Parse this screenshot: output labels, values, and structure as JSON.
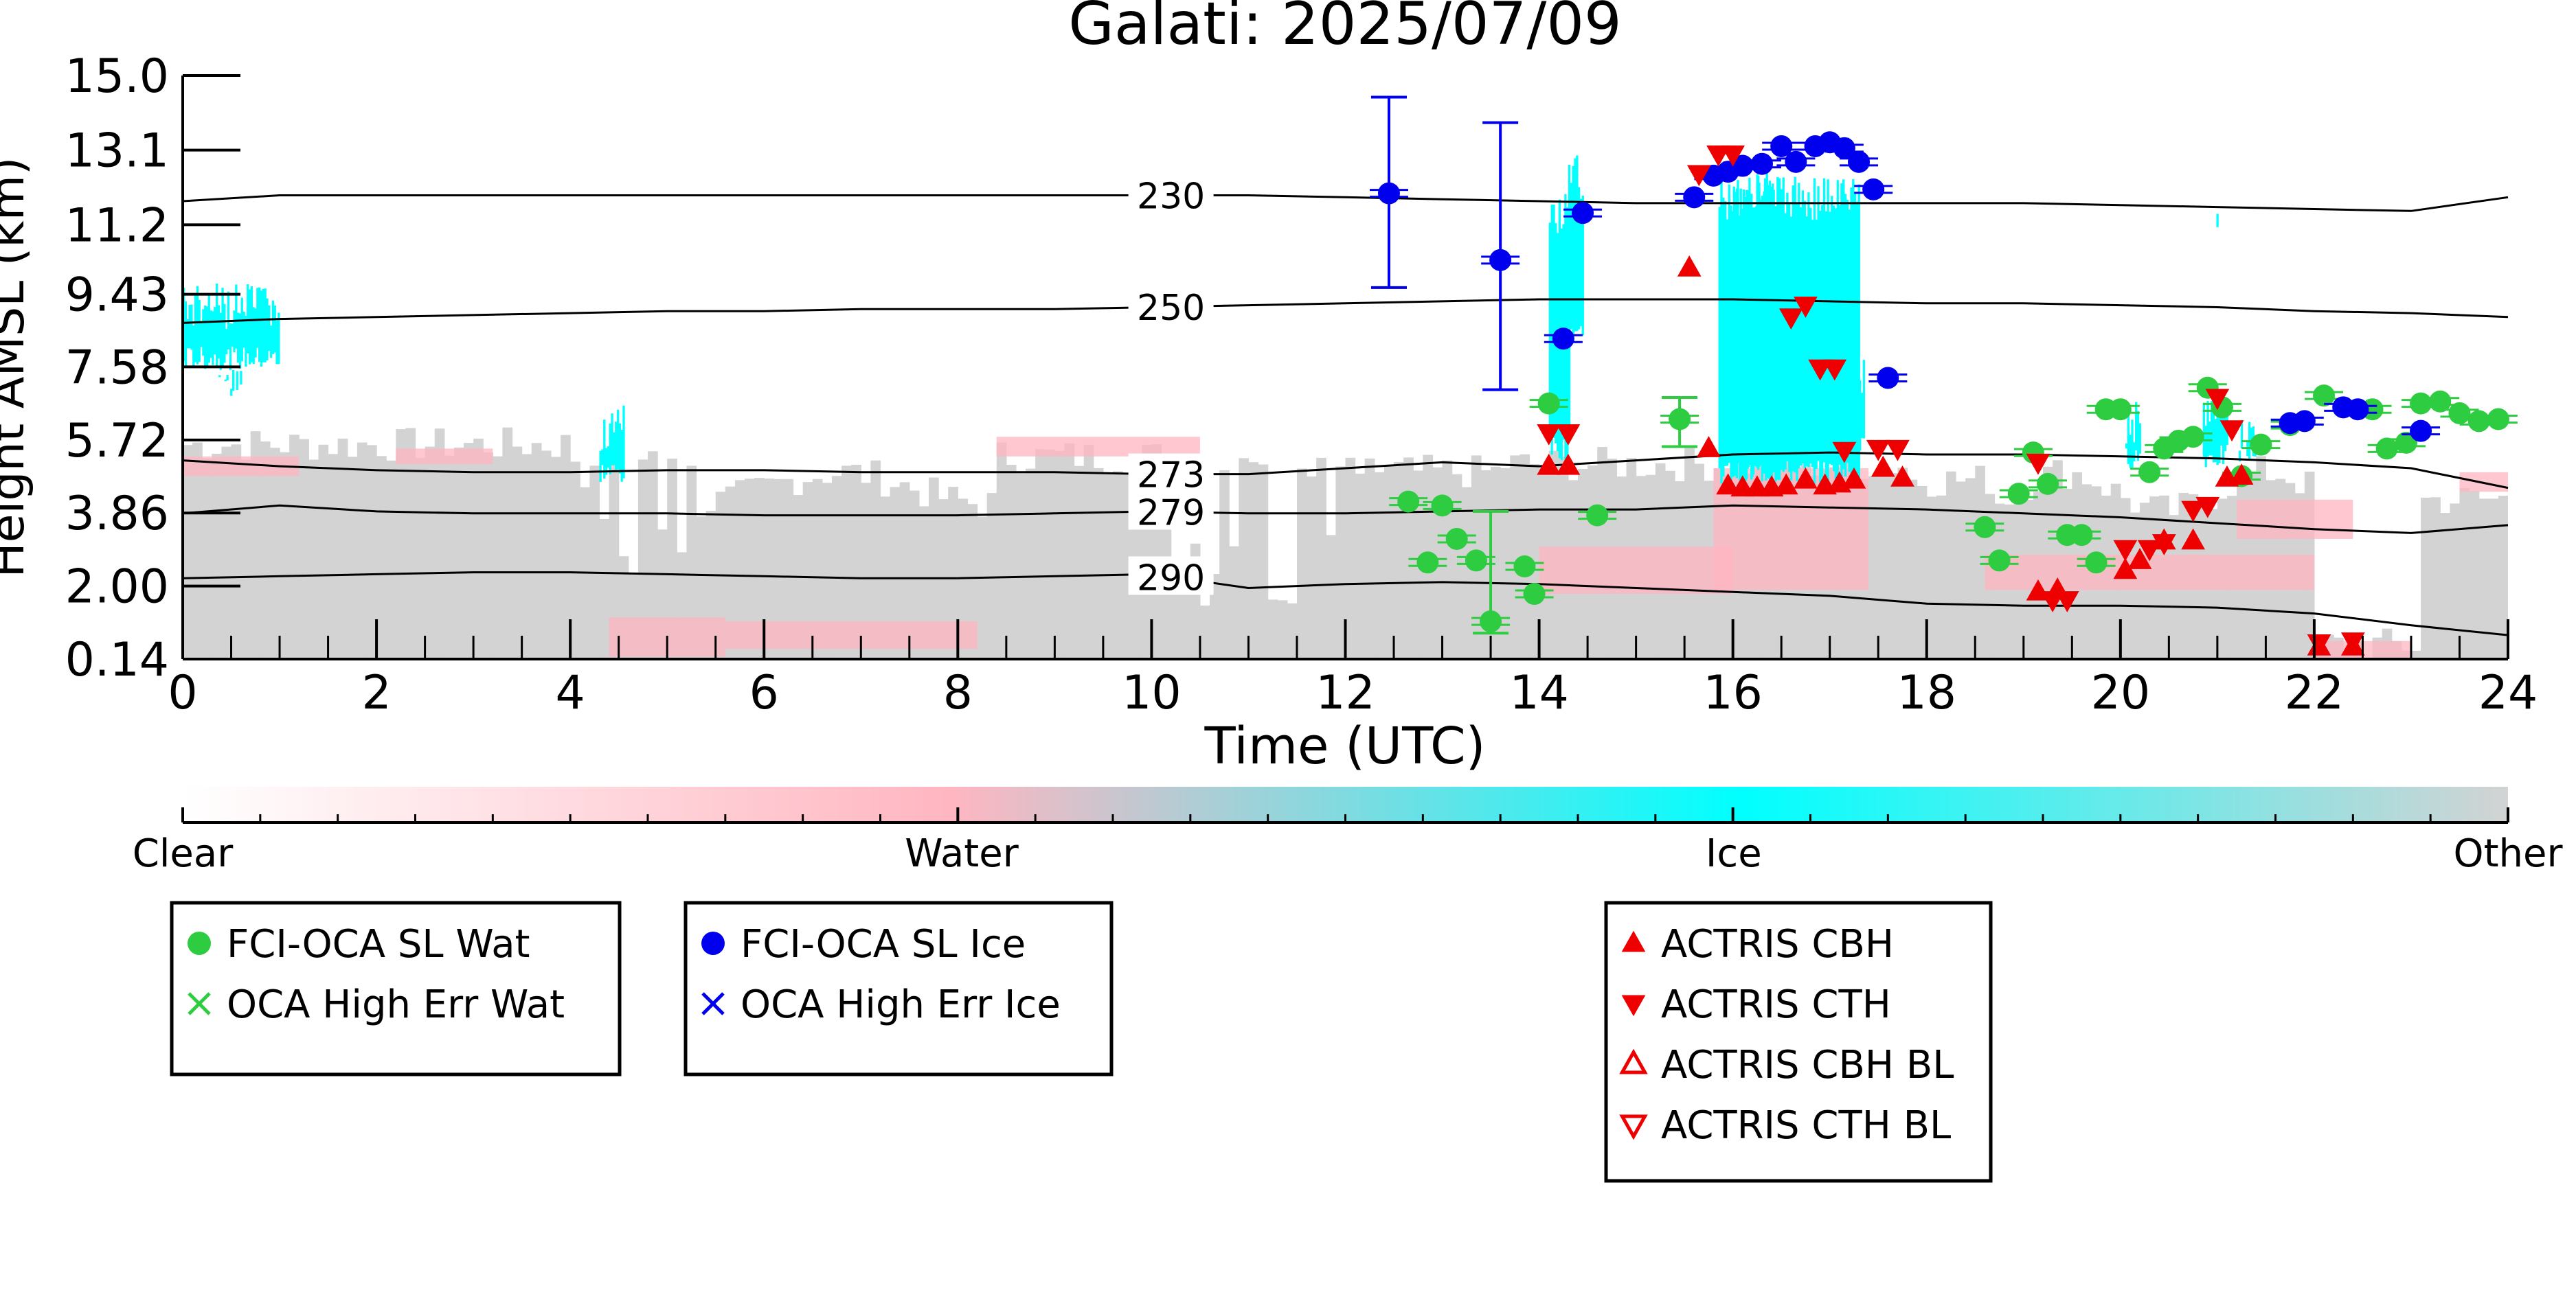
{
  "chart_data": {
    "type": "scatter",
    "title": "Galati: 2025/07/09",
    "xlabel": "Time (UTC)",
    "ylabel": "Height AMSL (km)",
    "xlim": [
      0,
      24
    ],
    "ylim": [
      0.14,
      15.0
    ],
    "x_ticks": [
      "0",
      "2",
      "4",
      "6",
      "8",
      "10",
      "12",
      "14",
      "16",
      "18",
      "20",
      "22",
      "24"
    ],
    "y_ticks": [
      "0.14",
      "2.00",
      "3.86",
      "5.72",
      "7.58",
      "9.43",
      "11.2",
      "13.1",
      "15.0"
    ],
    "colorbar": {
      "labels": [
        "Clear",
        "Water",
        "Ice",
        "Other"
      ],
      "colors": [
        "#ffffff",
        "#ffb6c1",
        "#00ffff",
        "#d3d3d3"
      ]
    },
    "contours": [
      {
        "label": "290",
        "x": [
          0,
          1,
          2,
          3,
          4,
          5,
          6,
          7,
          8,
          9,
          10,
          11,
          12,
          13,
          14,
          15,
          16,
          17,
          18,
          19,
          20,
          21,
          22,
          23,
          24
        ],
        "y": [
          2.2,
          2.25,
          2.3,
          2.35,
          2.35,
          2.3,
          2.25,
          2.2,
          2.2,
          2.25,
          2.3,
          1.95,
          2.05,
          2.1,
          2.05,
          1.95,
          1.85,
          1.75,
          1.55,
          1.5,
          1.5,
          1.45,
          1.3,
          1.0,
          0.75
        ]
      },
      {
        "label": "279",
        "x": [
          0,
          1,
          2,
          3,
          4,
          5,
          6,
          7,
          8,
          9,
          10,
          11,
          12,
          13,
          14,
          15,
          16,
          17,
          18,
          19,
          20,
          21,
          22,
          23,
          24
        ],
        "y": [
          3.85,
          4.05,
          3.9,
          3.85,
          3.85,
          3.85,
          3.8,
          3.8,
          3.8,
          3.85,
          3.9,
          3.85,
          3.85,
          3.9,
          3.95,
          3.95,
          4.05,
          4.0,
          3.95,
          3.85,
          3.75,
          3.6,
          3.45,
          3.35,
          3.55
        ]
      },
      {
        "label": "273",
        "x": [
          0,
          1,
          2,
          3,
          4,
          5,
          6,
          7,
          8,
          9,
          10,
          11,
          12,
          13,
          14,
          15,
          16,
          17,
          18,
          19,
          20,
          21,
          22,
          23,
          24
        ],
        "y": [
          5.2,
          5.05,
          4.95,
          4.9,
          4.9,
          4.95,
          4.95,
          4.9,
          4.9,
          4.9,
          4.85,
          4.85,
          5.0,
          5.15,
          5.05,
          5.2,
          5.35,
          5.4,
          5.35,
          5.35,
          5.3,
          5.25,
          5.15,
          5.0,
          4.5
        ]
      },
      {
        "label": "250",
        "x": [
          0,
          1,
          2,
          3,
          4,
          5,
          6,
          7,
          8,
          9,
          10,
          11,
          12,
          13,
          14,
          15,
          16,
          17,
          18,
          19,
          20,
          21,
          22,
          23,
          24
        ],
        "y": [
          8.7,
          8.8,
          8.85,
          8.9,
          8.95,
          9.0,
          9.0,
          9.05,
          9.05,
          9.05,
          9.1,
          9.15,
          9.2,
          9.25,
          9.3,
          9.3,
          9.3,
          9.25,
          9.2,
          9.2,
          9.15,
          9.1,
          9.0,
          8.95,
          8.85
        ]
      },
      {
        "label": "230",
        "x": [
          0,
          1,
          2,
          3,
          4,
          5,
          6,
          7,
          8,
          9,
          10,
          11,
          12,
          13,
          14,
          15,
          16,
          17,
          18,
          19,
          20,
          21,
          22,
          23,
          24
        ],
        "y": [
          11.8,
          11.95,
          11.95,
          11.95,
          11.95,
          11.95,
          11.95,
          11.95,
          11.95,
          11.95,
          11.95,
          11.95,
          11.9,
          11.85,
          11.8,
          11.75,
          11.75,
          11.75,
          11.75,
          11.75,
          11.7,
          11.65,
          11.6,
          11.55,
          11.9
        ]
      }
    ],
    "series": [
      {
        "name": "FCI-OCA SL Wat",
        "marker": "circle",
        "color": "#2ecc40",
        "points": [
          {
            "x": 12.65,
            "y": 4.15
          },
          {
            "x": 12.85,
            "y": 2.6
          },
          {
            "x": 13.0,
            "y": 4.05
          },
          {
            "x": 13.15,
            "y": 3.2
          },
          {
            "x": 13.35,
            "y": 2.65
          },
          {
            "x": 13.5,
            "y": 1.1,
            "err_low": 0.8,
            "err_high": 3.9
          },
          {
            "x": 13.85,
            "y": 2.5
          },
          {
            "x": 13.95,
            "y": 1.8
          },
          {
            "x": 14.1,
            "y": 6.65
          },
          {
            "x": 14.6,
            "y": 3.8
          },
          {
            "x": 15.45,
            "y": 6.25,
            "err_low": 5.55,
            "err_high": 6.8
          },
          {
            "x": 18.6,
            "y": 3.5
          },
          {
            "x": 18.75,
            "y": 2.65
          },
          {
            "x": 18.95,
            "y": 4.35
          },
          {
            "x": 19.1,
            "y": 5.4
          },
          {
            "x": 19.25,
            "y": 4.6
          },
          {
            "x": 19.45,
            "y": 3.3
          },
          {
            "x": 19.6,
            "y": 3.3
          },
          {
            "x": 19.75,
            "y": 2.6
          },
          {
            "x": 19.85,
            "y": 6.5
          },
          {
            "x": 20.0,
            "y": 6.5
          },
          {
            "x": 20.3,
            "y": 4.9
          },
          {
            "x": 20.45,
            "y": 5.5
          },
          {
            "x": 20.6,
            "y": 5.7
          },
          {
            "x": 20.75,
            "y": 5.8
          },
          {
            "x": 20.9,
            "y": 7.05
          },
          {
            "x": 21.05,
            "y": 6.55
          },
          {
            "x": 21.25,
            "y": 4.8
          },
          {
            "x": 21.45,
            "y": 5.6
          },
          {
            "x": 21.75,
            "y": 6.1
          },
          {
            "x": 22.1,
            "y": 6.85
          },
          {
            "x": 22.6,
            "y": 6.5
          },
          {
            "x": 22.75,
            "y": 5.5
          },
          {
            "x": 22.95,
            "y": 5.65
          },
          {
            "x": 23.1,
            "y": 6.65
          },
          {
            "x": 23.3,
            "y": 6.7
          },
          {
            "x": 23.5,
            "y": 6.4
          },
          {
            "x": 23.7,
            "y": 6.2
          },
          {
            "x": 23.9,
            "y": 6.25
          }
        ]
      },
      {
        "name": "OCA High Err Wat",
        "marker": "x",
        "color": "#2ecc40",
        "points": []
      },
      {
        "name": "FCI-OCA SL Ice",
        "marker": "circle",
        "color": "#0000ee",
        "points": [
          {
            "x": 12.45,
            "y": 12.0,
            "err_low": 9.6,
            "err_high": 14.45
          },
          {
            "x": 13.6,
            "y": 10.3,
            "err_low": 7.0,
            "err_high": 13.8
          },
          {
            "x": 14.25,
            "y": 8.3
          },
          {
            "x": 14.45,
            "y": 11.5
          },
          {
            "x": 15.6,
            "y": 11.9
          },
          {
            "x": 15.8,
            "y": 12.45
          },
          {
            "x": 15.95,
            "y": 12.55
          },
          {
            "x": 16.1,
            "y": 12.7
          },
          {
            "x": 16.3,
            "y": 12.75
          },
          {
            "x": 16.5,
            "y": 13.2
          },
          {
            "x": 16.65,
            "y": 12.8
          },
          {
            "x": 16.85,
            "y": 13.2
          },
          {
            "x": 17.0,
            "y": 13.3
          },
          {
            "x": 17.15,
            "y": 13.15
          },
          {
            "x": 17.3,
            "y": 12.8
          },
          {
            "x": 17.45,
            "y": 12.1
          },
          {
            "x": 17.6,
            "y": 7.3
          },
          {
            "x": 21.75,
            "y": 6.15
          },
          {
            "x": 21.9,
            "y": 6.2
          },
          {
            "x": 22.3,
            "y": 6.55
          },
          {
            "x": 22.45,
            "y": 6.5
          },
          {
            "x": 23.1,
            "y": 5.95
          }
        ]
      },
      {
        "name": "OCA High Err Ice",
        "marker": "x",
        "color": "#0000ee",
        "points": []
      },
      {
        "name": "ACTRIS CBH",
        "marker": "triangle-up",
        "color": "#ee0000",
        "points": [
          {
            "x": 14.1,
            "y": 5.05
          },
          {
            "x": 14.3,
            "y": 5.05
          },
          {
            "x": 15.55,
            "y": 10.1
          },
          {
            "x": 15.75,
            "y": 5.5
          },
          {
            "x": 15.95,
            "y": 4.55
          },
          {
            "x": 16.1,
            "y": 4.5
          },
          {
            "x": 16.25,
            "y": 4.5
          },
          {
            "x": 16.4,
            "y": 4.5
          },
          {
            "x": 16.55,
            "y": 4.55
          },
          {
            "x": 16.75,
            "y": 4.7
          },
          {
            "x": 16.95,
            "y": 4.55
          },
          {
            "x": 17.1,
            "y": 4.6
          },
          {
            "x": 17.25,
            "y": 4.7
          },
          {
            "x": 17.55,
            "y": 5.0
          },
          {
            "x": 17.75,
            "y": 4.75
          },
          {
            "x": 19.15,
            "y": 1.85
          },
          {
            "x": 19.35,
            "y": 1.9
          },
          {
            "x": 20.05,
            "y": 2.4
          },
          {
            "x": 20.2,
            "y": 2.65
          },
          {
            "x": 20.45,
            "y": 3.15
          },
          {
            "x": 20.75,
            "y": 3.15
          },
          {
            "x": 21.1,
            "y": 4.75
          },
          {
            "x": 21.25,
            "y": 4.8
          },
          {
            "x": 22.05,
            "y": 0.45
          },
          {
            "x": 22.4,
            "y": 0.45
          }
        ]
      },
      {
        "name": "ACTRIS CTH",
        "marker": "triangle-down",
        "color": "#ee0000",
        "points": [
          {
            "x": 14.1,
            "y": 5.9
          },
          {
            "x": 14.3,
            "y": 5.9
          },
          {
            "x": 15.65,
            "y": 12.5
          },
          {
            "x": 15.85,
            "y": 13.0
          },
          {
            "x": 16.0,
            "y": 13.0
          },
          {
            "x": 16.6,
            "y": 8.85
          },
          {
            "x": 16.75,
            "y": 9.15
          },
          {
            "x": 16.9,
            "y": 7.55
          },
          {
            "x": 17.05,
            "y": 7.55
          },
          {
            "x": 17.15,
            "y": 5.45
          },
          {
            "x": 17.5,
            "y": 5.5
          },
          {
            "x": 17.7,
            "y": 5.5
          },
          {
            "x": 19.15,
            "y": 5.15
          },
          {
            "x": 19.3,
            "y": 1.65
          },
          {
            "x": 19.45,
            "y": 1.65
          },
          {
            "x": 20.05,
            "y": 2.95
          },
          {
            "x": 20.3,
            "y": 2.95
          },
          {
            "x": 20.45,
            "y": 3.1
          },
          {
            "x": 20.75,
            "y": 3.95
          },
          {
            "x": 20.9,
            "y": 4.05
          },
          {
            "x": 21.0,
            "y": 6.8
          },
          {
            "x": 21.15,
            "y": 6.0
          },
          {
            "x": 22.05,
            "y": 0.55
          },
          {
            "x": 22.4,
            "y": 0.6
          }
        ]
      },
      {
        "name": "ACTRIS CBH BL",
        "marker": "triangle-up-open",
        "color": "#ee0000",
        "points": []
      },
      {
        "name": "ACTRIS CTH BL",
        "marker": "triangle-down-open",
        "color": "#ee0000",
        "points": []
      }
    ],
    "legend": [
      {
        "placement": "bottom-left",
        "entries": [
          "FCI-OCA SL Wat",
          "OCA High Err Wat"
        ]
      },
      {
        "placement": "bottom-center-left",
        "entries": [
          "FCI-OCA SL Ice",
          "OCA High Err Ice"
        ]
      },
      {
        "placement": "bottom-center-right",
        "entries": [
          "ACTRIS CBH",
          "ACTRIS CTH",
          "ACTRIS CBH BL",
          "ACTRIS CTH BL"
        ]
      }
    ],
    "grid": false
  }
}
